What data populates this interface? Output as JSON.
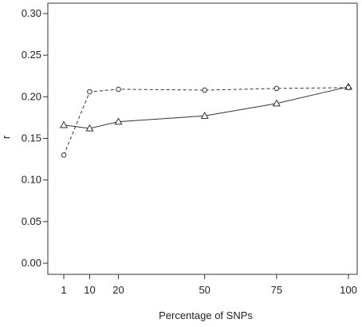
{
  "chart_data": {
    "type": "line",
    "title": "",
    "xlabel": "Percentage of SNPs",
    "ylabel": "r",
    "xlim": [
      1,
      100
    ],
    "ylim": [
      0,
      0.3
    ],
    "x_ticks": [
      1,
      10,
      20,
      50,
      75,
      100
    ],
    "x_tick_labels": [
      "1",
      "10",
      "20",
      "50",
      "75",
      "100"
    ],
    "y_ticks": [
      0.0,
      0.05,
      0.1,
      0.15,
      0.2,
      0.25,
      0.3
    ],
    "y_tick_labels": [
      "0.00",
      "0.05",
      "0.10",
      "0.15",
      "0.20",
      "0.25",
      "0.30"
    ],
    "grid": false,
    "legend": "none",
    "x": [
      1,
      10,
      20,
      50,
      75,
      100
    ],
    "series": [
      {
        "line_style": "solid",
        "marker": "triangle",
        "color": "#333333",
        "values": [
          0.166,
          0.162,
          0.17,
          0.177,
          0.192,
          0.212
        ]
      },
      {
        "line_style": "dashed",
        "marker": "circle",
        "color": "#333333",
        "values": [
          0.13,
          0.206,
          0.209,
          0.208,
          0.21,
          0.211
        ]
      }
    ]
  }
}
